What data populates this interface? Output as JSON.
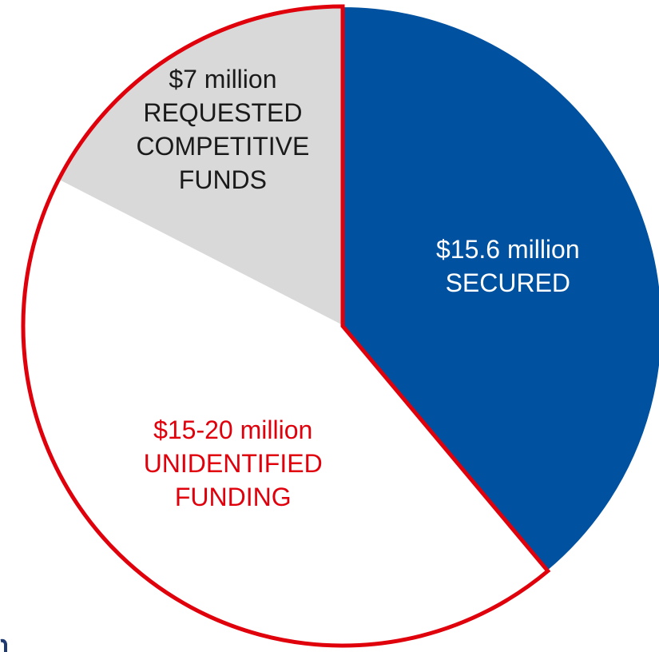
{
  "chart_data": {
    "type": "pie",
    "title": "",
    "slices": [
      {
        "label_lines": [
          "$15.6 million",
          "SECURED"
        ],
        "value_low": 15.6,
        "value_high": 15.6,
        "color": "#0052A0",
        "text_color": "#ffffff"
      },
      {
        "label_lines": [
          "$15-20 million",
          "UNIDENTIFIED",
          "FUNDING"
        ],
        "value_low": 15,
        "value_high": 20,
        "color": "#ffffff",
        "text_color": "#e0000b",
        "outline_color": "#e0000b"
      },
      {
        "label_lines": [
          "$7 million",
          "REQUESTED",
          "COMPETITIVE",
          "FUNDS"
        ],
        "value_low": 7,
        "value_high": 7,
        "color": "#d9d9d9",
        "text_color": "#1a1a1a"
      }
    ],
    "start_angle_deg": 0,
    "direction": "clockwise",
    "legend": "none"
  }
}
